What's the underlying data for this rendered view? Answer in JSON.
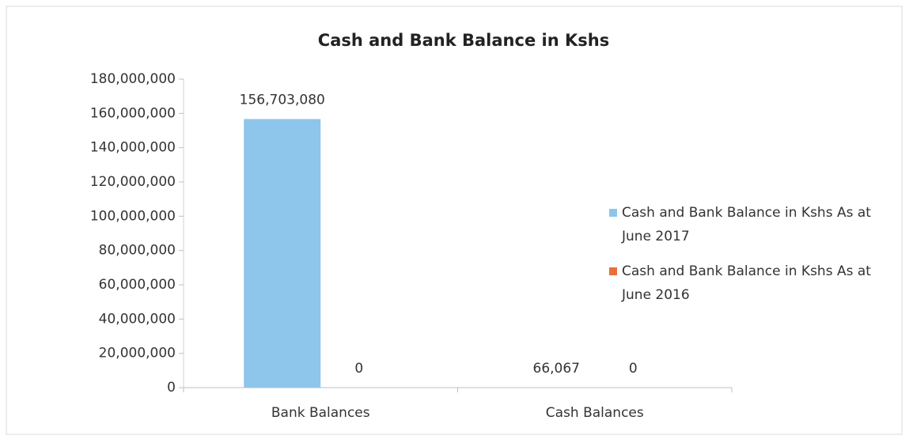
{
  "chart_data": {
    "type": "bar",
    "title": "Cash and Bank Balance in Kshs",
    "categories": [
      "Bank Balances",
      "Cash Balances"
    ],
    "series": [
      {
        "name": "Cash and Bank Balance in Kshs As at June 2017",
        "color": "#8ec5ea",
        "values": [
          156703080,
          66067
        ],
        "value_labels": [
          "156,703,080",
          "66,067"
        ]
      },
      {
        "name": "Cash and Bank Balance in Kshs As at June 2016",
        "color": "#e8703a",
        "values": [
          0,
          0
        ]
      }
    ],
    "ylim": [
      0,
      180000000
    ],
    "yticks": [
      0,
      {
        "value": 20000000,
        "label": "20,000,000"
      },
      {
        "value": 40000000,
        "label": "40,000,000"
      },
      {
        "value": 60000000,
        "label": "60,000,000"
      },
      {
        "value": 80000000,
        "label": "80,000,000"
      },
      {
        "value": 100000000,
        "label": "100,000,000"
      },
      {
        "value": 120000000,
        "label": "120,000,000"
      },
      {
        "value": 140000000,
        "label": "140,000,000"
      },
      {
        "value": 160000000,
        "label": "160,000,000"
      },
      {
        "value": 180000000,
        "label": "180,000,000"
      }
    ],
    "grid": false,
    "legend": "right"
  }
}
